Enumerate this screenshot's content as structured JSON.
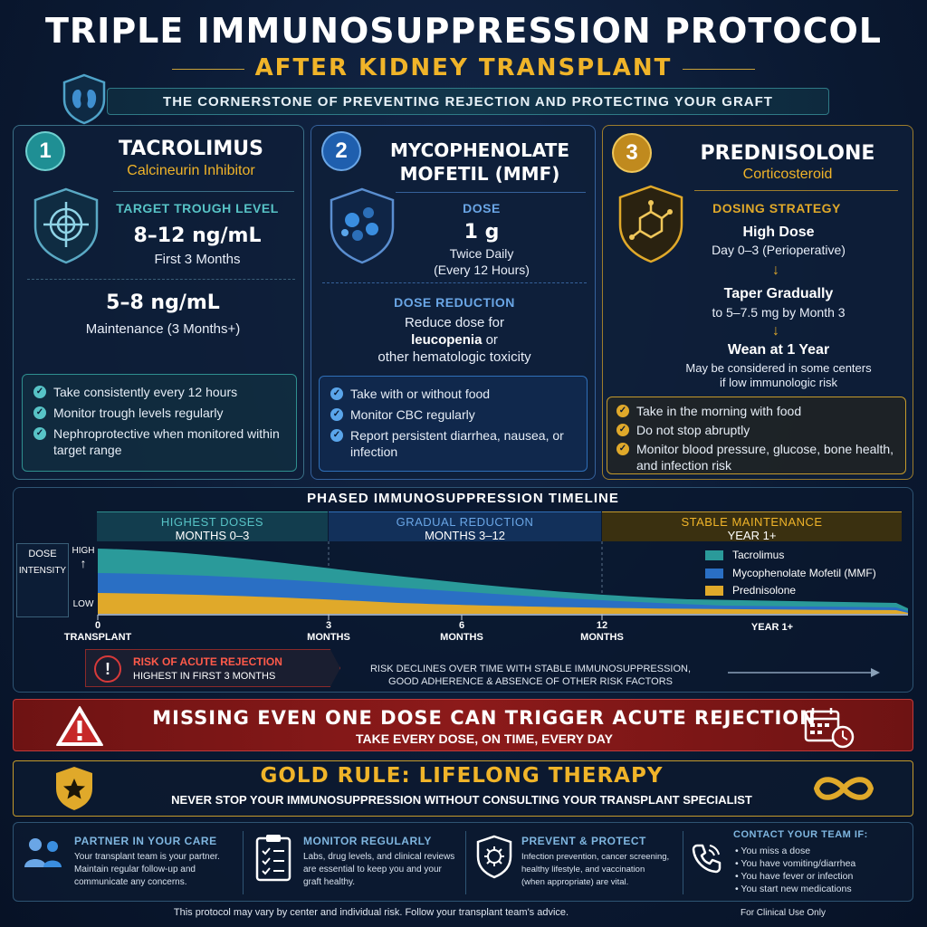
{
  "header": {
    "title": "TRIPLE IMMUNOSUPPRESSION PROTOCOL",
    "subtitle": "AFTER KIDNEY TRANSPLANT",
    "tagline": "THE CORNERSTONE OF PREVENTING REJECTION AND PROTECTING YOUR GRAFT",
    "badge_icon": "kidney-shield-icon"
  },
  "cards": [
    {
      "number": "1",
      "name": "TACROLIMUS",
      "drug_class": "Calcineurin Inhibitor",
      "icon": "target-shield-icon",
      "section1_label": "TARGET TROUGH LEVEL",
      "value1": "8–12 ng/mL",
      "value1_note": "First 3 Months",
      "value2": "5–8 ng/mL",
      "value2_note": "Maintenance (3 Months+)",
      "bullets": [
        "Take consistently every 12 hours",
        "Monitor trough levels regularly",
        "Nephroprotective when monitored within target range"
      ],
      "accent": "#2fb3b3"
    },
    {
      "number": "2",
      "name_line1": "MYCOPHENOLATE",
      "name_line2": "MOFETIL (MMF)",
      "icon": "cells-shield-icon",
      "section1_label": "DOSE",
      "value1": "1 g",
      "value1_note1": "Twice Daily",
      "value1_note2": "(Every 12 Hours)",
      "section2_label": "DOSE REDUCTION",
      "reduction_line1": "Reduce dose for",
      "reduction_bold": "leucopenia",
      "reduction_or": "or",
      "reduction_line3": "other hematologic toxicity",
      "bullets": [
        "Take with or without food",
        "Monitor CBC regularly",
        "Report persistent diarrhea, nausea, or infection"
      ],
      "accent": "#3a8ee0"
    },
    {
      "number": "3",
      "name": "PREDNISOLONE",
      "drug_class": "Corticosteroid",
      "icon": "molecule-shield-icon",
      "section1_label": "DOSING STRATEGY",
      "step1": "High Dose",
      "step1_note": "Day 0–3 (Perioperative)",
      "step2": "Taper Gradually",
      "step2_note": "to 5–7.5 mg by Month 3",
      "step3": "Wean at 1 Year",
      "step3_note1": "May be considered in some centers",
      "step3_note2": "if low immunologic risk",
      "bullets": [
        "Take in the morning with food",
        "Do not stop abruptly",
        "Monitor blood pressure, glucose, bone health, and infection risk"
      ],
      "accent": "#e0a92a"
    }
  ],
  "timeline": {
    "title": "PHASED IMMUNOSUPPRESSION TIMELINE",
    "phases": [
      {
        "name": "HIGHEST DOSES",
        "months": "MONTHS 0–3"
      },
      {
        "name": "GRADUAL REDUCTION",
        "months": "MONTHS 3–12"
      },
      {
        "name": "STABLE MAINTENANCE",
        "months": "YEAR 1+"
      }
    ],
    "y_label1": "DOSE",
    "y_label2": "INTENSITY",
    "y_high": "HIGH",
    "y_low": "LOW",
    "x_ticks": [
      {
        "num": "0",
        "unit": "TRANSPLANT"
      },
      {
        "num": "3",
        "unit": "MONTHS"
      },
      {
        "num": "6",
        "unit": "MONTHS"
      },
      {
        "num": "12",
        "unit": "MONTHS"
      },
      {
        "num": "",
        "unit": "YEAR 1+"
      }
    ],
    "legend": [
      {
        "name": "Tacrolimus",
        "color": "#2a9a9a"
      },
      {
        "name": "Mycophenolate Mofetil (MMF)",
        "color": "#2a6fc4"
      },
      {
        "name": "Prednisolone",
        "color": "#e0a92a"
      }
    ],
    "risk_title": "RISK OF ACUTE REJECTION",
    "risk_sub": "HIGHEST IN FIRST 3 MONTHS",
    "risk_note1": "RISK DECLINES OVER TIME WITH STABLE IMMUNOSUPPRESSION,",
    "risk_note2": "GOOD ADHERENCE & ABSENCE OF OTHER RISK FACTORS"
  },
  "warning": {
    "title": "MISSING EVEN ONE DOSE CAN TRIGGER ACUTE REJECTION",
    "sub": "TAKE EVERY DOSE, ON TIME, EVERY DAY",
    "icon_left": "warning-triangle-icon",
    "icon_right": "calendar-clock-icon"
  },
  "gold_rule": {
    "title": "GOLD RULE: LIFELONG THERAPY",
    "sub": "NEVER STOP YOUR IMMUNOSUPPRESSION WITHOUT CONSULTING YOUR TRANSPLANT SPECIALIST",
    "icon_left": "star-shield-icon",
    "icon_right": "infinity-icon"
  },
  "footer_cols": [
    {
      "head": "PARTNER IN YOUR CARE",
      "lines": [
        "Your transplant team is your partner.",
        "Maintain regular follow-up and",
        "communicate any concerns."
      ],
      "icon": "people-icon"
    },
    {
      "head": "MONITOR REGULARLY",
      "lines": [
        "Labs, drug levels, and clinical reviews",
        "are essential to keep you and your",
        "graft healthy."
      ],
      "icon": "clipboard-icon"
    },
    {
      "head": "PREVENT & PROTECT",
      "lines": [
        "Infection prevention, cancer screening,",
        "healthy lifestyle, and vaccination",
        "(when appropriate) are vital."
      ],
      "icon": "virus-shield-icon"
    },
    {
      "head": "CONTACT YOUR TEAM IF:",
      "lines": [
        "• You miss a dose",
        "• You have vomiting/diarrhea",
        "• You have fever or infection",
        "• You start new medications"
      ],
      "icon": "phone-icon"
    }
  ],
  "disclaimer": "This protocol may vary by center and individual risk. Follow your transplant team's advice.",
  "clinical": "For Clinical Use Only"
}
